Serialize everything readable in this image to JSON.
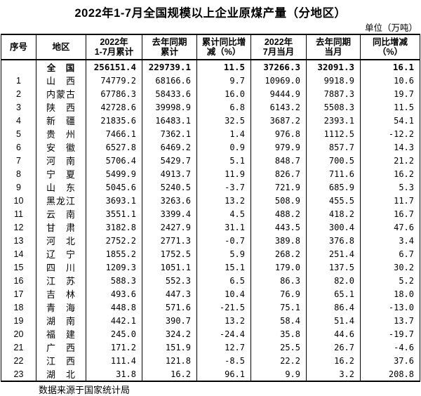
{
  "title": "2022年1-7月全国规模以上企业原煤产量（分地区）",
  "unit_label": "单位（万吨）",
  "footer": "数据来源于国家统计局",
  "table": {
    "columns": [
      "序号",
      "地区",
      "2022年\n1-7月累计",
      "去年同期\n累计",
      "累计同比增\n减（%）",
      "2022年\n7月当月",
      "去年同期\n当月",
      "同比增减\n（%）"
    ],
    "rows": [
      {
        "bold": true,
        "cells": [
          "",
          "全　国",
          "256151.4",
          "229739.1",
          "11.5",
          "37266.3",
          "32091.3",
          "16.1"
        ]
      },
      {
        "bold": false,
        "cells": [
          "1",
          "山　西",
          "74779.2",
          "68166.6",
          "9.7",
          "10969.0",
          "9918.9",
          "10.6"
        ]
      },
      {
        "bold": false,
        "cells": [
          "2",
          "内蒙古",
          "67786.3",
          "58433.6",
          "16.0",
          "9444.9",
          "7887.3",
          "19.7"
        ]
      },
      {
        "bold": false,
        "cells": [
          "3",
          "陕　西",
          "42728.6",
          "39998.9",
          "6.8",
          "6143.2",
          "5508.3",
          "11.5"
        ]
      },
      {
        "bold": false,
        "cells": [
          "4",
          "新　疆",
          "21835.6",
          "16483.1",
          "32.5",
          "3687.2",
          "2393.1",
          "54.1"
        ]
      },
      {
        "bold": false,
        "cells": [
          "5",
          "贵　州",
          "7466.1",
          "7362.1",
          "1.4",
          "976.8",
          "1112.5",
          "-12.2"
        ]
      },
      {
        "bold": false,
        "cells": [
          "6",
          "安　徽",
          "6527.8",
          "6469.2",
          "0.9",
          "979.9",
          "857.7",
          "14.3"
        ]
      },
      {
        "bold": false,
        "cells": [
          "7",
          "河　南",
          "5706.4",
          "5429.7",
          "5.1",
          "848.7",
          "700.5",
          "21.2"
        ]
      },
      {
        "bold": false,
        "cells": [
          "8",
          "宁　夏",
          "5499.9",
          "4913.7",
          "11.9",
          "826.7",
          "711.6",
          "16.2"
        ]
      },
      {
        "bold": false,
        "cells": [
          "9",
          "山　东",
          "5045.6",
          "5240.5",
          "-3.7",
          "721.9",
          "685.9",
          "5.3"
        ]
      },
      {
        "bold": false,
        "cells": [
          "10",
          "黑龙江",
          "3693.1",
          "3263.6",
          "13.2",
          "508.9",
          "455.5",
          "11.7"
        ]
      },
      {
        "bold": false,
        "cells": [
          "11",
          "云　南",
          "3551.1",
          "3399.4",
          "4.5",
          "488.2",
          "418.2",
          "16.7"
        ]
      },
      {
        "bold": false,
        "cells": [
          "12",
          "甘　肃",
          "3182.8",
          "2427.9",
          "31.1",
          "443.5",
          "300.4",
          "47.6"
        ]
      },
      {
        "bold": false,
        "cells": [
          "13",
          "河　北",
          "2752.2",
          "2771.3",
          "-0.7",
          "389.8",
          "376.8",
          "3.4"
        ]
      },
      {
        "bold": false,
        "cells": [
          "14",
          "辽　宁",
          "1855.2",
          "1752.5",
          "5.9",
          "268.2",
          "251.4",
          "6.7"
        ]
      },
      {
        "bold": false,
        "cells": [
          "15",
          "四　川",
          "1209.3",
          "1051.1",
          "15.1",
          "179.0",
          "137.5",
          "30.2"
        ]
      },
      {
        "bold": false,
        "cells": [
          "16",
          "江　苏",
          "588.3",
          "552.3",
          "6.5",
          "86.3",
          "82.0",
          "5.2"
        ]
      },
      {
        "bold": false,
        "cells": [
          "17",
          "吉　林",
          "493.6",
          "447.3",
          "10.4",
          "76.9",
          "65.1",
          "18.0"
        ]
      },
      {
        "bold": false,
        "cells": [
          "18",
          "青　海",
          "448.8",
          "571.6",
          "-21.5",
          "75.1",
          "86.4",
          "-13.0"
        ]
      },
      {
        "bold": false,
        "cells": [
          "19",
          "湖　南",
          "442.1",
          "390.7",
          "13.2",
          "58.4",
          "51.4",
          "13.7"
        ]
      },
      {
        "bold": false,
        "cells": [
          "20",
          "福　建",
          "245.0",
          "324.2",
          "-24.4",
          "35.8",
          "44.6",
          "-19.7"
        ]
      },
      {
        "bold": false,
        "cells": [
          "21",
          "广　西",
          "171.2",
          "151.9",
          "12.7",
          "25.5",
          "26.7",
          "-4.6"
        ]
      },
      {
        "bold": false,
        "cells": [
          "22",
          "江　西",
          "111.4",
          "121.8",
          "-8.5",
          "22.2",
          "16.2",
          "37.6"
        ]
      },
      {
        "bold": false,
        "cells": [
          "23",
          "湖　北",
          "31.8",
          "16.2",
          "96.1",
          "9.9",
          "3.2",
          "208.8"
        ]
      }
    ]
  }
}
